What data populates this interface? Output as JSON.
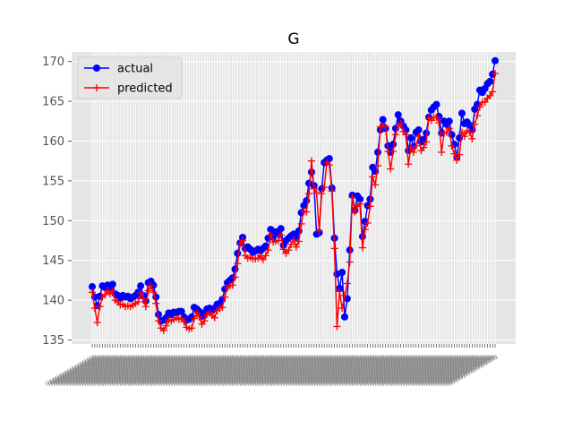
{
  "chart_data": {
    "type": "line",
    "title": "G",
    "xlabel": "",
    "ylabel": "",
    "ylim": [
      134.5,
      171.2
    ],
    "yticks": [
      135,
      140,
      145,
      150,
      155,
      160,
      165,
      170
    ],
    "grid": true,
    "legend": "upper left",
    "style": "ggplot",
    "x_tick_labels_note": "",
    "series": [
      {
        "name": "actual",
        "color": "#0000ff",
        "marker": "circle",
        "values": [
          141.7,
          140.4,
          139.3,
          140.5,
          141.8,
          141.6,
          141.9,
          141.6,
          142.0,
          140.8,
          140.6,
          140.3,
          140.6,
          140.4,
          140.5,
          140.2,
          140.4,
          140.6,
          141.0,
          141.8,
          140.6,
          139.9,
          142.2,
          142.4,
          141.9,
          140.4,
          138.2,
          137.4,
          137.5,
          137.8,
          138.4,
          138.2,
          138.5,
          138.4,
          138.6,
          138.6,
          137.9,
          137.5,
          137.6,
          137.9,
          139.1,
          138.9,
          138.6,
          138.0,
          138.4,
          138.9,
          139.0,
          138.7,
          139.0,
          139.5,
          139.6,
          140.1,
          141.4,
          142.2,
          142.5,
          142.8,
          143.9,
          145.9,
          147.2,
          147.9,
          146.5,
          146.7,
          146.4,
          146.0,
          146.2,
          146.4,
          146.2,
          146.5,
          146.8,
          147.8,
          148.9,
          147.9,
          148.6,
          148.4,
          149.0,
          146.9,
          147.5,
          147.8,
          148.1,
          148.3,
          147.9,
          148.7,
          151.0,
          151.9,
          152.5,
          154.7,
          156.1,
          154.4,
          148.3,
          148.5,
          154.0,
          157.3,
          157.6,
          157.8,
          154.1,
          147.8,
          143.3,
          141.5,
          143.5,
          137.9,
          140.2,
          146.3,
          153.2,
          151.3,
          153.1,
          152.7,
          148.0,
          149.9,
          151.9,
          152.7,
          156.7,
          156.2,
          158.6,
          161.4,
          162.7,
          161.6,
          159.4,
          158.6,
          159.6,
          161.6,
          163.3,
          162.5,
          161.9,
          161.4,
          158.8,
          160.4,
          159.3,
          161.1,
          161.4,
          159.9,
          160.2,
          161.0,
          163.0,
          163.9,
          164.3,
          164.6,
          163.1,
          161.0,
          162.5,
          162.1,
          162.5,
          160.8,
          159.6,
          158.0,
          160.4,
          163.5,
          162.2,
          162.4,
          162.0,
          161.4,
          164.0,
          164.6,
          166.4,
          166.1,
          166.6,
          167.2,
          167.5,
          168.4,
          170.1
        ]
      },
      {
        "name": "predicted",
        "color": "#ff0000",
        "marker": "plus",
        "values": [
          141.0,
          139.0,
          137.2,
          139.2,
          140.4,
          140.7,
          141.2,
          140.8,
          141.1,
          140.0,
          139.8,
          139.4,
          139.5,
          139.2,
          139.3,
          139.2,
          139.4,
          139.6,
          139.8,
          140.9,
          140.2,
          139.2,
          141.2,
          141.8,
          141.0,
          139.6,
          137.4,
          136.5,
          136.2,
          136.8,
          137.5,
          137.4,
          137.6,
          137.8,
          137.6,
          137.7,
          137.3,
          136.6,
          136.4,
          136.5,
          137.7,
          138.4,
          137.9,
          137.0,
          137.4,
          138.2,
          138.4,
          138.1,
          137.8,
          138.7,
          139.0,
          139.1,
          140.4,
          141.6,
          141.8,
          141.9,
          142.9,
          144.6,
          147.1,
          147.5,
          145.6,
          145.3,
          145.4,
          145.2,
          145.2,
          145.3,
          145.6,
          145.1,
          145.6,
          146.3,
          148.2,
          147.3,
          147.4,
          147.5,
          148.2,
          146.4,
          145.9,
          146.3,
          147.0,
          147.6,
          146.7,
          147.4,
          149.6,
          151.2,
          151.1,
          153.4,
          157.5,
          154.0,
          153.5,
          148.7,
          153.4,
          154.2,
          157.3,
          157.0,
          153.7,
          146.5,
          136.7,
          141.1,
          139.0,
          140.6,
          142.1,
          144.8,
          152.9,
          151.1,
          151.8,
          152.1,
          146.6,
          148.9,
          149.7,
          151.8,
          155.5,
          154.5,
          156.9,
          161.8,
          161.9,
          161.8,
          158.7,
          156.5,
          158.7,
          160.8,
          161.9,
          162.2,
          161.2,
          160.8,
          157.1,
          159.2,
          158.6,
          159.4,
          160.6,
          158.8,
          159.2,
          159.9,
          162.9,
          162.6,
          163.0,
          163.0,
          162.3,
          158.6,
          161.0,
          161.1,
          161.6,
          159.4,
          158.4,
          157.6,
          158.3,
          161.1,
          160.6,
          161.3,
          161.1,
          160.3,
          162.1,
          163.2,
          164.3,
          164.9,
          164.9,
          165.4,
          165.7,
          166.2,
          168.5
        ]
      }
    ]
  }
}
